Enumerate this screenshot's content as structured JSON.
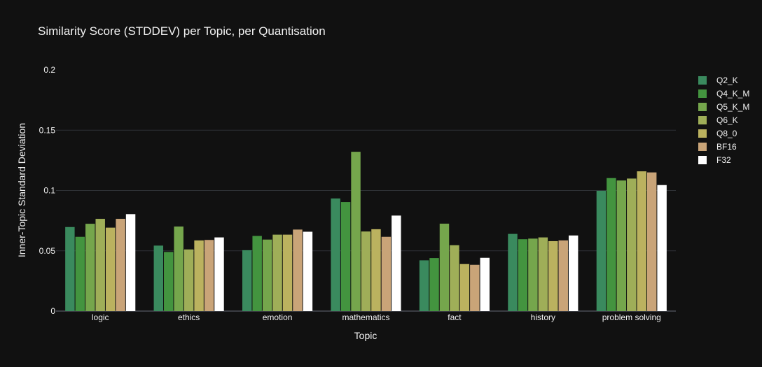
{
  "chart_data": {
    "type": "bar",
    "title": "Similarity Score (STDDEV) per Topic, per Quantisation",
    "xlabel": "Topic",
    "ylabel": "Inner-Topic Standard Deviation",
    "ylim": [
      0,
      0.2
    ],
    "yticks": [
      "0",
      "0.05",
      "0.1",
      "0.15",
      "0.2"
    ],
    "ytick_values": [
      0,
      0.05,
      0.1,
      0.15,
      0.2
    ],
    "grid": true,
    "legend_position": "right",
    "categories": [
      "logic",
      "ethics",
      "emotion",
      "mathematics",
      "fact",
      "history",
      "problem solving"
    ],
    "series": [
      {
        "name": "Q2_K",
        "color": "#3a8a5e",
        "values": [
          0.0697,
          0.0543,
          0.0505,
          0.0934,
          0.0421,
          0.064,
          0.0998
        ]
      },
      {
        "name": "Q4_K_M",
        "color": "#43943f",
        "values": [
          0.0616,
          0.049,
          0.0623,
          0.0904,
          0.044,
          0.0596,
          0.1103
        ]
      },
      {
        "name": "Q5_K_M",
        "color": "#75a64c",
        "values": [
          0.0724,
          0.0701,
          0.0593,
          0.1321,
          0.0725,
          0.0601,
          0.1083
        ]
      },
      {
        "name": "Q6_K",
        "color": "#9fae58",
        "values": [
          0.0765,
          0.0511,
          0.0634,
          0.066,
          0.0546,
          0.0611,
          0.1099
        ]
      },
      {
        "name": "Q8_0",
        "color": "#bbb25f",
        "values": [
          0.0692,
          0.0586,
          0.0634,
          0.0679,
          0.039,
          0.058,
          0.1159
        ]
      },
      {
        "name": "BF16",
        "color": "#c9a478",
        "values": [
          0.0765,
          0.059,
          0.0676,
          0.0616,
          0.0384,
          0.0586,
          0.115
        ]
      },
      {
        "name": "F32",
        "color": "#ffffff",
        "values": [
          0.0804,
          0.0611,
          0.0658,
          0.0792,
          0.0442,
          0.0627,
          0.1045
        ]
      }
    ]
  }
}
